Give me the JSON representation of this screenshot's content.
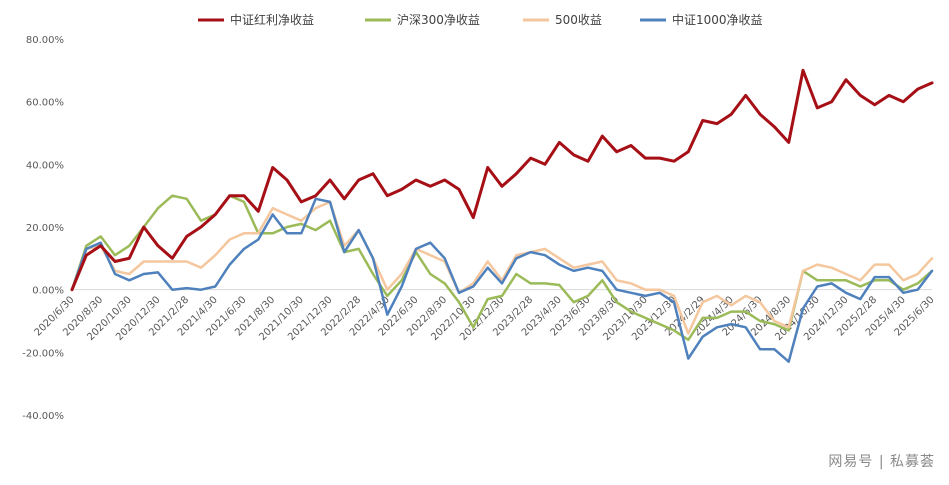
{
  "watermark": "网易号 | 私募荟",
  "chart_data": {
    "type": "line",
    "title": "",
    "xlabel": "",
    "ylabel": "",
    "ylim": [
      -0.4,
      0.8
    ],
    "yticks": [
      "-40.00%",
      "-20.00%",
      "0.00%",
      "20.00%",
      "40.00%",
      "60.00%",
      "80.00%"
    ],
    "ytick_values": [
      -0.4,
      -0.2,
      0.0,
      0.2,
      0.4,
      0.6,
      0.8
    ],
    "grid": false,
    "legend_position": "top",
    "x_tick_labels": [
      "2020/6/30",
      "2020/8/30",
      "2020/10/30",
      "2020/12/30",
      "2021/2/28",
      "2021/4/30",
      "2021/6/30",
      "2021/8/30",
      "2021/10/30",
      "2021/12/30",
      "2022/2/28",
      "2022/4/30",
      "2022/6/30",
      "2022/8/30",
      "2022/10/30",
      "2022/12/30",
      "2023/2/28",
      "2023/4/30",
      "2023/6/30",
      "2023/8/30",
      "2023/10/30",
      "2023/12/30",
      "2024/2/29",
      "2024/4/30",
      "2024/6/30",
      "2024/8/30",
      "2024/10/30",
      "2024/12/30",
      "2025/2/28",
      "2025/4/30",
      "2025/6/30"
    ],
    "x_tick_step": 2,
    "series": [
      {
        "name": "中证红利净收益",
        "color": "#a50f15",
        "width": 3,
        "values": [
          0.0,
          0.11,
          0.14,
          0.09,
          0.1,
          0.2,
          0.14,
          0.1,
          0.17,
          0.2,
          0.24,
          0.3,
          0.3,
          0.25,
          0.39,
          0.35,
          0.28,
          0.3,
          0.35,
          0.29,
          0.35,
          0.37,
          0.3,
          0.32,
          0.35,
          0.33,
          0.35,
          0.32,
          0.23,
          0.39,
          0.33,
          0.37,
          0.42,
          0.4,
          0.47,
          0.43,
          0.41,
          0.49,
          0.44,
          0.46,
          0.42,
          0.42,
          0.41,
          0.44,
          0.54,
          0.53,
          0.56,
          0.62,
          0.56,
          0.52,
          0.47,
          0.7,
          0.58,
          0.6,
          0.67,
          0.62,
          0.59,
          0.62,
          0.6,
          0.64,
          0.66
        ]
      },
      {
        "name": "沪深300净收益",
        "color": "#9bbb59",
        "width": 2.5,
        "values": [
          0.0,
          0.14,
          0.17,
          0.11,
          0.14,
          0.2,
          0.26,
          0.3,
          0.29,
          0.22,
          0.24,
          0.3,
          0.28,
          0.18,
          0.18,
          0.2,
          0.21,
          0.19,
          0.22,
          0.12,
          0.13,
          0.05,
          -0.02,
          0.03,
          0.12,
          0.05,
          0.02,
          -0.04,
          -0.12,
          -0.03,
          -0.02,
          0.05,
          0.02,
          0.02,
          0.015,
          -0.04,
          -0.02,
          0.03,
          -0.04,
          -0.07,
          -0.09,
          -0.11,
          -0.13,
          -0.16,
          -0.09,
          -0.09,
          -0.07,
          -0.07,
          -0.1,
          -0.11,
          -0.13,
          0.06,
          0.03,
          0.03,
          0.03,
          0.01,
          0.03,
          0.03,
          0.0,
          0.02,
          0.06
        ]
      },
      {
        "name": "500收益",
        "color": "#f4c79e",
        "width": 2.5,
        "values": [
          0.0,
          0.13,
          0.14,
          0.06,
          0.05,
          0.09,
          0.09,
          0.09,
          0.09,
          0.07,
          0.11,
          0.16,
          0.18,
          0.18,
          0.26,
          0.24,
          0.22,
          0.26,
          0.28,
          0.14,
          0.19,
          0.1,
          0.0,
          0.05,
          0.13,
          0.11,
          0.09,
          -0.01,
          0.02,
          0.09,
          0.03,
          0.11,
          0.12,
          0.13,
          0.1,
          0.07,
          0.08,
          0.09,
          0.03,
          0.02,
          0.0,
          0.0,
          -0.02,
          -0.14,
          -0.04,
          -0.02,
          -0.05,
          -0.02,
          -0.04,
          -0.1,
          -0.12,
          0.06,
          0.08,
          0.07,
          0.05,
          0.03,
          0.08,
          0.08,
          0.03,
          0.05,
          0.1
        ]
      },
      {
        "name": "中证1000净收益",
        "color": "#4f81bd",
        "width": 2.5,
        "values": [
          0.0,
          0.13,
          0.15,
          0.05,
          0.03,
          0.05,
          0.055,
          0.0,
          0.005,
          0.0,
          0.01,
          0.08,
          0.13,
          0.16,
          0.24,
          0.18,
          0.18,
          0.29,
          0.28,
          0.12,
          0.19,
          0.1,
          -0.08,
          0.01,
          0.13,
          0.15,
          0.1,
          -0.01,
          0.01,
          0.07,
          0.02,
          0.1,
          0.12,
          0.11,
          0.08,
          0.06,
          0.07,
          0.06,
          0.0,
          -0.01,
          -0.02,
          -0.01,
          -0.04,
          -0.22,
          -0.15,
          -0.12,
          -0.11,
          -0.12,
          -0.19,
          -0.19,
          -0.23,
          -0.06,
          0.01,
          0.02,
          -0.01,
          -0.03,
          0.04,
          0.04,
          -0.01,
          0.0,
          0.06
        ]
      }
    ]
  }
}
